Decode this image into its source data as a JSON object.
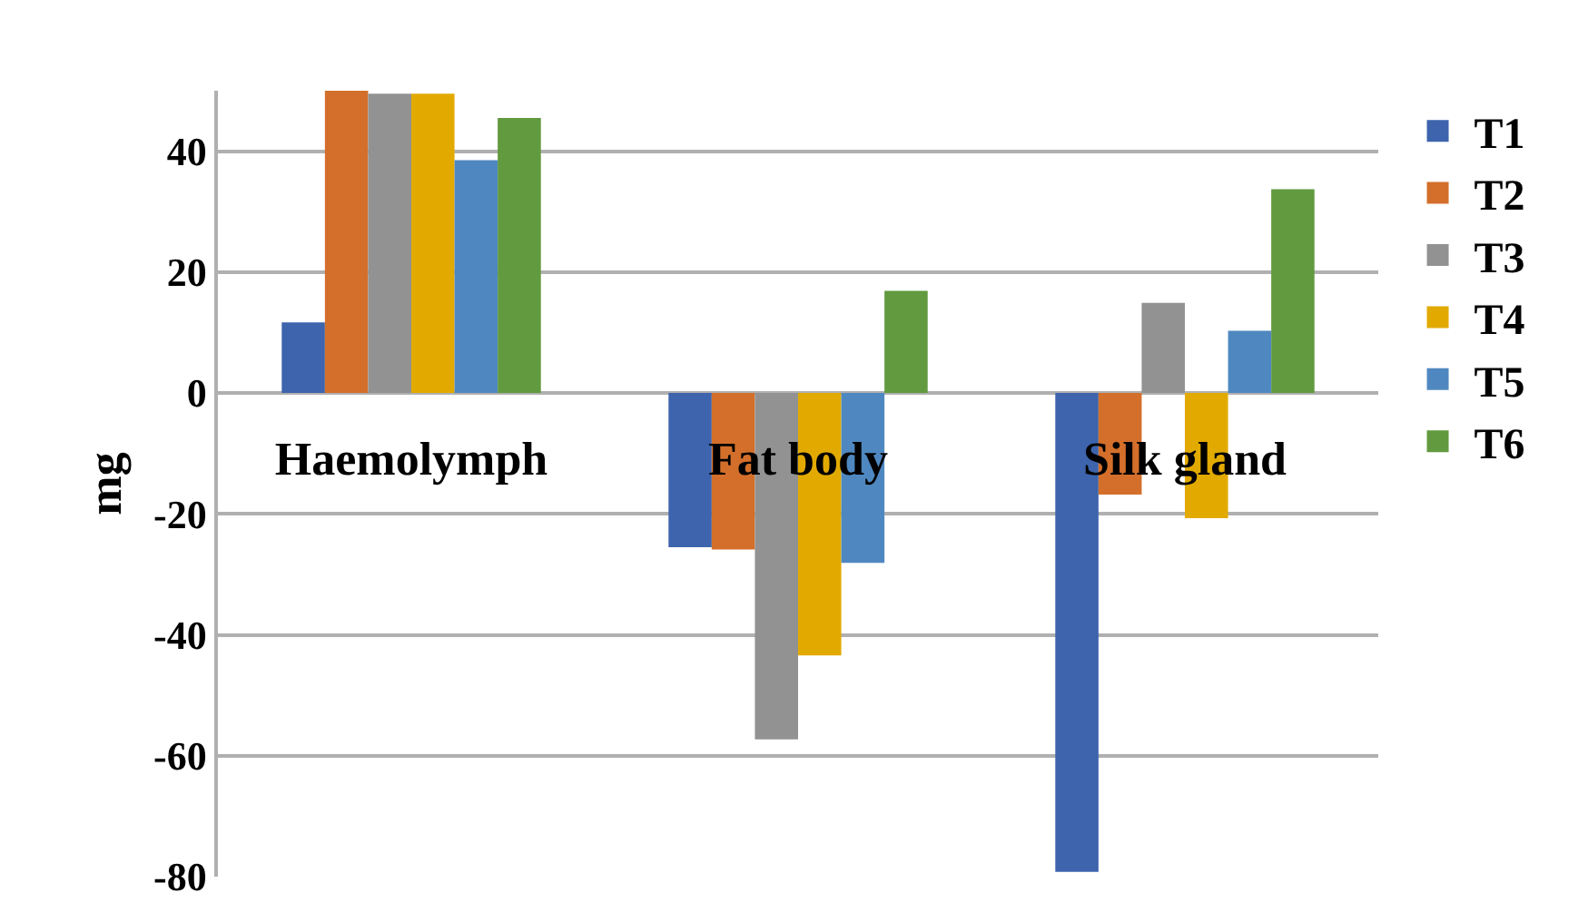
{
  "chart_data": {
    "type": "bar",
    "ylabel": "mg",
    "categories": [
      "Haemolymph",
      "Fat body",
      "Silk gland"
    ],
    "series": [
      {
        "name": "T1",
        "color": "#3d64ad",
        "values": [
          11.7,
          -25.5,
          -79.2
        ]
      },
      {
        "name": "T2",
        "color": "#d36f2b",
        "values": [
          50,
          -25.9,
          -16.8
        ]
      },
      {
        "name": "T3",
        "color": "#929292",
        "values": [
          49.5,
          -57.3,
          14.9
        ]
      },
      {
        "name": "T4",
        "color": "#e2aa00",
        "values": [
          49.5,
          -43.4,
          -20.7
        ]
      },
      {
        "name": "T5",
        "color": "#4f88c0",
        "values": [
          38.5,
          -28.1,
          10.3
        ]
      },
      {
        "name": "T6",
        "color": "#619a3f",
        "values": [
          45.5,
          16.9,
          33.7
        ]
      }
    ],
    "ylim": [
      -80,
      50
    ],
    "yticks": [
      -80,
      -60,
      -40,
      -20,
      0,
      20,
      40
    ],
    "grid": "y",
    "legend": "right"
  }
}
